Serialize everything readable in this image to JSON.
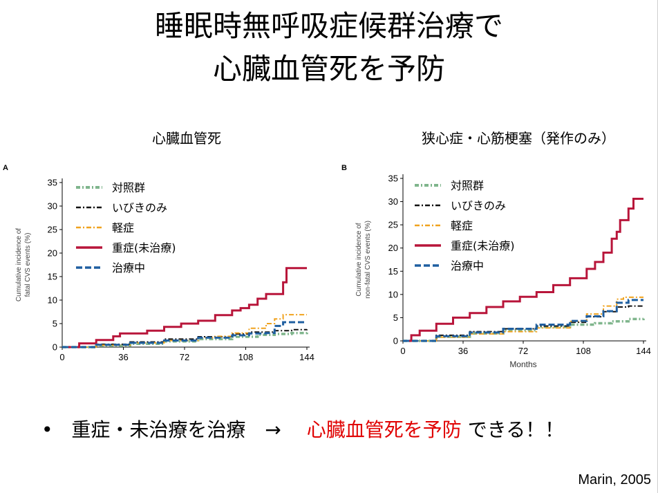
{
  "slide": {
    "title_line1": "睡眠時無呼吸症候群治療で",
    "title_line2": "心臓血管死を予防",
    "bullet_marker": "•",
    "bullet_black": "重症・未治療を治療　→　",
    "bullet_red": "心臓血管死を予防",
    "bullet_tail": "できる！！",
    "citation": "Marin, 2005"
  },
  "colors": {
    "control": "#7fb58c",
    "snoring": "#111111",
    "mild": "#f0a21e",
    "severe": "#b8153a",
    "treated": "#1f5fa0",
    "highlight": "#e00000"
  },
  "chart_data": [
    {
      "type": "line",
      "panel_letter": "A",
      "subtitle": "心臓血管死",
      "ylabel": "Cumulative incidence of fatal CVS events (%)",
      "xlabel": "",
      "xlim": [
        0,
        144
      ],
      "ylim": [
        0,
        35
      ],
      "xticks": [
        0,
        36,
        72,
        108,
        144
      ],
      "yticks": [
        0,
        5,
        10,
        15,
        20,
        25,
        30,
        35
      ],
      "legend_position": "top-left",
      "series": [
        {
          "name": "対照群",
          "color_key": "control",
          "style": "dotdash-thick",
          "x": [
            0,
            20,
            40,
            60,
            80,
            100,
            115,
            125,
            135,
            144
          ],
          "y": [
            0,
            0.3,
            0.7,
            1.2,
            1.7,
            2.2,
            2.6,
            2.8,
            3.0,
            3.1
          ]
        },
        {
          "name": "いびきのみ",
          "color_key": "snoring",
          "style": "dashdot",
          "x": [
            0,
            20,
            40,
            60,
            80,
            100,
            110,
            125,
            135,
            144
          ],
          "y": [
            0,
            0.6,
            1.1,
            1.7,
            2.2,
            2.8,
            3.2,
            3.5,
            3.7,
            3.8
          ]
        },
        {
          "name": "軽症",
          "color_key": "mild",
          "style": "dashdot",
          "x": [
            0,
            20,
            40,
            60,
            80,
            90,
            100,
            110,
            120,
            125,
            130,
            138,
            144
          ],
          "y": [
            0,
            0.4,
            0.9,
            1.4,
            2.0,
            2.3,
            3.0,
            4.0,
            5.0,
            6.0,
            6.9,
            6.9,
            6.9
          ]
        },
        {
          "name": "重症(未治療)",
          "color_key": "severe",
          "style": "solid",
          "x": [
            0,
            10,
            20,
            30,
            34,
            50,
            60,
            70,
            80,
            90,
            100,
            105,
            110,
            115,
            120,
            125,
            130,
            132,
            138,
            144
          ],
          "y": [
            0,
            0.8,
            1.5,
            2.3,
            2.9,
            3.5,
            4.3,
            5.0,
            5.6,
            6.8,
            7.8,
            8.3,
            9.0,
            10.3,
            11.3,
            11.3,
            13.8,
            16.8,
            16.8,
            16.8
          ]
        },
        {
          "name": "治療中",
          "color_key": "treated",
          "style": "dashed",
          "x": [
            0,
            20,
            40,
            60,
            80,
            100,
            110,
            120,
            125,
            130,
            138,
            144
          ],
          "y": [
            0,
            0.5,
            0.9,
            1.4,
            2.0,
            2.5,
            2.9,
            3.0,
            4.5,
            5.3,
            5.3,
            5.3
          ]
        }
      ]
    },
    {
      "type": "line",
      "panel_letter": "B",
      "subtitle": "狭心症・心筋梗塞（発作のみ）",
      "ylabel": "Cumulative incidence of non-fatal CVS events (%)",
      "xlabel": "Months",
      "xlim": [
        0,
        144
      ],
      "ylim": [
        0,
        35
      ],
      "xticks": [
        0,
        36,
        72,
        108,
        144
      ],
      "yticks": [
        0,
        5,
        10,
        15,
        20,
        25,
        30,
        35
      ],
      "legend_position": "top-left",
      "series": [
        {
          "name": "対照群",
          "color_key": "control",
          "style": "dotdash-thick",
          "x": [
            0,
            20,
            40,
            60,
            80,
            100,
            115,
            125,
            135,
            144
          ],
          "y": [
            0,
            0.9,
            1.6,
            2.3,
            3.0,
            3.5,
            3.8,
            4.2,
            4.7,
            4.8
          ]
        },
        {
          "name": "いびきのみ",
          "color_key": "snoring",
          "style": "dashdot",
          "x": [
            0,
            20,
            40,
            60,
            80,
            100,
            110,
            120,
            128,
            135,
            144
          ],
          "y": [
            0,
            1.2,
            2.0,
            2.6,
            3.2,
            4.0,
            5.2,
            6.3,
            7.3,
            7.5,
            7.5
          ]
        },
        {
          "name": "軽症",
          "color_key": "mild",
          "style": "dashdot",
          "x": [
            0,
            20,
            40,
            60,
            80,
            100,
            110,
            120,
            128,
            132,
            140,
            144
          ],
          "y": [
            0,
            0.8,
            1.5,
            2.0,
            2.8,
            4.2,
            5.8,
            7.5,
            9.0,
            9.4,
            9.4,
            9.4
          ]
        },
        {
          "name": "重症(未治療)",
          "color_key": "severe",
          "style": "solid",
          "x": [
            0,
            5,
            10,
            20,
            30,
            40,
            50,
            60,
            70,
            80,
            90,
            100,
            110,
            115,
            120,
            125,
            128,
            130,
            135,
            138,
            144
          ],
          "y": [
            0,
            1.2,
            2.2,
            3.7,
            5.0,
            6.0,
            7.3,
            8.5,
            9.5,
            10.5,
            12.0,
            13.5,
            15.5,
            17.0,
            19.0,
            22.0,
            23.5,
            26.0,
            28.5,
            30.6,
            30.6
          ]
        },
        {
          "name": "治療中",
          "color_key": "treated",
          "style": "dashed",
          "x": [
            0,
            20,
            40,
            60,
            80,
            100,
            110,
            120,
            128,
            135,
            144
          ],
          "y": [
            0,
            1.0,
            1.8,
            2.6,
            3.5,
            4.3,
            5.3,
            6.4,
            8.2,
            8.8,
            8.8
          ]
        }
      ]
    }
  ]
}
